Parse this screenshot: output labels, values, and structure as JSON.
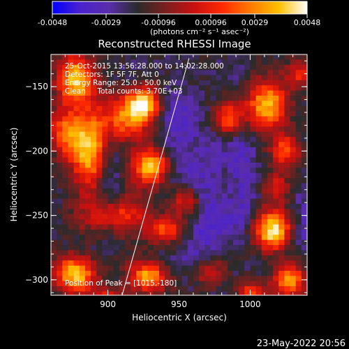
{
  "colorbar": {
    "ticks": [
      "-0.0048",
      "-0.0029",
      "-0.00096",
      "0.00096",
      "0.0029",
      "0.0048"
    ],
    "unit_label": "(photons cm⁻² s⁻¹ asec⁻²)",
    "colors": [
      "#0000ff",
      "#4b22cc",
      "#5a2dac",
      "#2b2b2b",
      "#7a1f1f",
      "#c81010",
      "#ff2a00",
      "#ff7a00",
      "#ffc000",
      "#ffffff"
    ]
  },
  "title": "Reconstructed RHESSI Image",
  "info_lines": [
    "25-Oct-2015 13:56:28.000 to 14:02:28.000",
    "Detectors: 1F 5F 7F, Att 0",
    "Energy Range: 25.0 - 50.0 keV",
    "Clean     Total counts: 3.70E+03"
  ],
  "peak_text": "Position of Peak = [1015,-180]",
  "footer_date": "23-May-2022 20:56",
  "chart_data": {
    "type": "heatmap",
    "title": "Reconstructed RHESSI Image",
    "xlabel": "Heliocentric X (arcsec)",
    "ylabel": "Heliocentric Y (arcsec)",
    "xlim": [
      860,
      1040
    ],
    "ylim": [
      -312,
      -125
    ],
    "x_ticks": [
      900,
      950,
      1000
    ],
    "y_ticks": [
      -150,
      -200,
      -250,
      -300
    ],
    "colorbar_range": [
      -0.0048,
      0.0048
    ],
    "limb_line": [
      [
        910,
        -312
      ],
      [
        957,
        -128
      ]
    ],
    "peak": [
      1015,
      -180
    ],
    "grid_step_arcsec": 4,
    "sources": [
      {
        "x": 877,
        "y": -145,
        "amp": 0.85,
        "sx": 9,
        "sy": 14
      },
      {
        "x": 870,
        "y": -185,
        "amp": 0.6,
        "sx": 8,
        "sy": 12
      },
      {
        "x": 888,
        "y": -200,
        "amp": 0.9,
        "sx": 10,
        "sy": 24
      },
      {
        "x": 912,
        "y": -175,
        "amp": 0.65,
        "sx": 12,
        "sy": 14
      },
      {
        "x": 926,
        "y": -163,
        "amp": 0.85,
        "sx": 8,
        "sy": 9
      },
      {
        "x": 930,
        "y": -212,
        "amp": 0.95,
        "sx": 9,
        "sy": 10
      },
      {
        "x": 908,
        "y": -250,
        "amp": 0.6,
        "sx": 15,
        "sy": 10
      },
      {
        "x": 955,
        "y": -238,
        "amp": 0.55,
        "sx": 8,
        "sy": 9
      },
      {
        "x": 940,
        "y": -262,
        "amp": 0.55,
        "sx": 9,
        "sy": 7
      },
      {
        "x": 877,
        "y": -295,
        "amp": 0.95,
        "sx": 10,
        "sy": 10
      },
      {
        "x": 928,
        "y": -298,
        "amp": 0.85,
        "sx": 9,
        "sy": 8
      },
      {
        "x": 903,
        "y": -318,
        "amp": 0.6,
        "sx": 10,
        "sy": 8
      },
      {
        "x": 972,
        "y": -295,
        "amp": 0.55,
        "sx": 7,
        "sy": 9
      },
      {
        "x": 985,
        "y": -175,
        "amp": 0.6,
        "sx": 7,
        "sy": 9
      },
      {
        "x": 1012,
        "y": -165,
        "amp": 0.95,
        "sx": 10,
        "sy": 13
      },
      {
        "x": 1025,
        "y": -200,
        "amp": 0.55,
        "sx": 7,
        "sy": 9
      },
      {
        "x": 1018,
        "y": -228,
        "amp": 0.5,
        "sx": 7,
        "sy": 8
      },
      {
        "x": 1015,
        "y": -262,
        "amp": 1.0,
        "sx": 9,
        "sy": 11
      },
      {
        "x": 1028,
        "y": -300,
        "amp": 0.8,
        "sx": 8,
        "sy": 9
      },
      {
        "x": 1000,
        "y": -310,
        "amp": 0.55,
        "sx": 7,
        "sy": 7
      },
      {
        "x": 1035,
        "y": -140,
        "amp": 0.45,
        "sx": 6,
        "sy": 8
      }
    ],
    "negative_sources": [
      {
        "x": 900,
        "y": -215,
        "amp": 0.7,
        "sx": 7,
        "sy": 30
      },
      {
        "x": 948,
        "y": -185,
        "amp": 0.5,
        "sx": 9,
        "sy": 30
      },
      {
        "x": 968,
        "y": -250,
        "amp": 0.6,
        "sx": 10,
        "sy": 40
      },
      {
        "x": 995,
        "y": -225,
        "amp": 0.5,
        "sx": 8,
        "sy": 35
      },
      {
        "x": 1038,
        "y": -255,
        "amp": 0.4,
        "sx": 6,
        "sy": 20
      }
    ]
  }
}
